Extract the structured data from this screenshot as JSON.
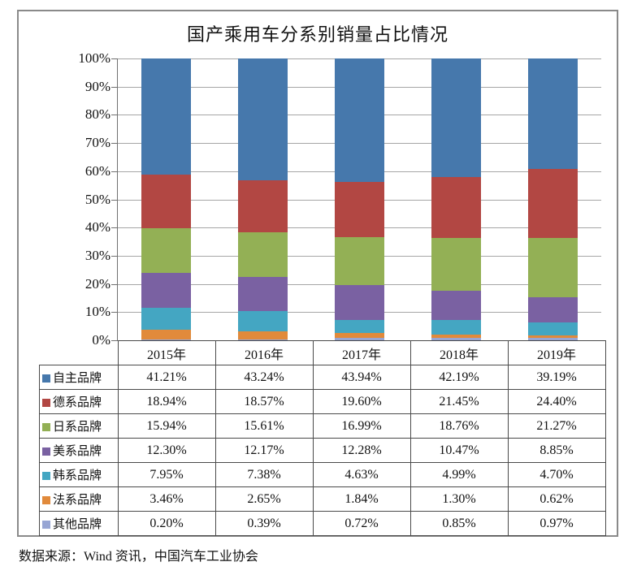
{
  "chart_data": {
    "type": "bar",
    "stacked": true,
    "title": "国产乘用车分系别销量占比情况",
    "categories": [
      "2015年",
      "2016年",
      "2017年",
      "2018年",
      "2019年"
    ],
    "series": [
      {
        "name": "自主品牌",
        "color": "#4678AC",
        "values": [
          41.21,
          43.24,
          43.94,
          42.19,
          39.19
        ]
      },
      {
        "name": "德系品牌",
        "color": "#B24743",
        "values": [
          18.94,
          18.57,
          19.6,
          21.45,
          24.4
        ]
      },
      {
        "name": "日系品牌",
        "color": "#93B055",
        "values": [
          15.94,
          15.61,
          16.99,
          18.76,
          21.27
        ]
      },
      {
        "name": "美系品牌",
        "color": "#7A61A2",
        "values": [
          12.3,
          12.17,
          12.28,
          10.47,
          8.85
        ]
      },
      {
        "name": "韩系品牌",
        "color": "#44A6C2",
        "values": [
          7.95,
          7.38,
          4.63,
          4.99,
          4.7
        ]
      },
      {
        "name": "法系品牌",
        "color": "#E18A3B",
        "values": [
          3.46,
          2.65,
          1.84,
          1.3,
          0.62
        ]
      },
      {
        "name": "其他品牌",
        "color": "#98A6D4",
        "values": [
          0.2,
          0.39,
          0.72,
          0.85,
          0.97
        ]
      }
    ],
    "yticks": [
      "100%",
      "90%",
      "80%",
      "70%",
      "60%",
      "50%",
      "40%",
      "30%",
      "20%",
      "10%",
      "0%"
    ],
    "ylim": [
      0,
      100
    ],
    "grid": true,
    "legend_position": "table-left",
    "value_suffix": "%",
    "value_decimals": 2
  },
  "footer": {
    "source_text": "数据来源：Wind 资讯，中国汽车工业协会"
  }
}
